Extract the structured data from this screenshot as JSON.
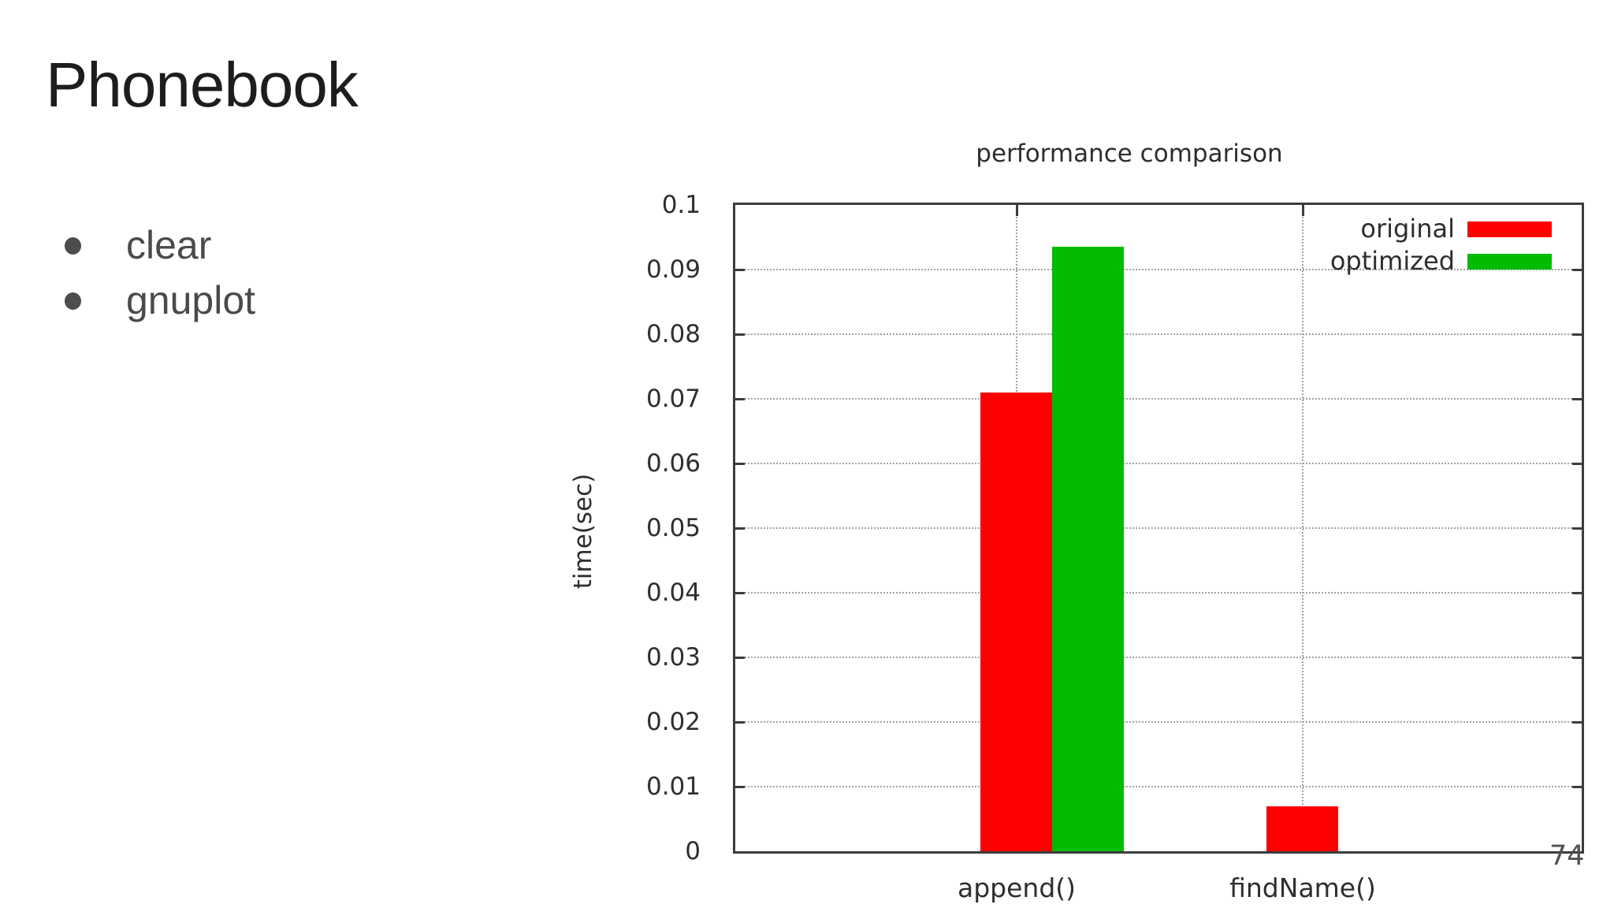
{
  "slide": {
    "title": "Phonebook",
    "bullets": [
      "clear",
      "gnuplot"
    ],
    "page_number": "74"
  },
  "chart_data": {
    "type": "bar",
    "title": "performance comparison",
    "xlabel": "",
    "ylabel": "time(sec)",
    "categories": [
      "append()",
      "findName()"
    ],
    "series": [
      {
        "name": "original",
        "color": "#fe0000",
        "values": [
          0.071,
          0.007
        ]
      },
      {
        "name": "optimized",
        "color": "#02bb02",
        "values": [
          0.0935,
          0
        ]
      }
    ],
    "ylim": [
      0,
      0.1
    ],
    "ytick_step": 0.01,
    "ytick_labels": [
      "0",
      "0.01",
      "0.02",
      "0.03",
      "0.04",
      "0.05",
      "0.06",
      "0.07",
      "0.08",
      "0.09",
      "0.1"
    ],
    "grid": true,
    "legend_position": "top-right",
    "colors": {
      "axis": "#3c3c3c",
      "grid": "#a3a3a3",
      "text": "#2e2e2e"
    }
  }
}
